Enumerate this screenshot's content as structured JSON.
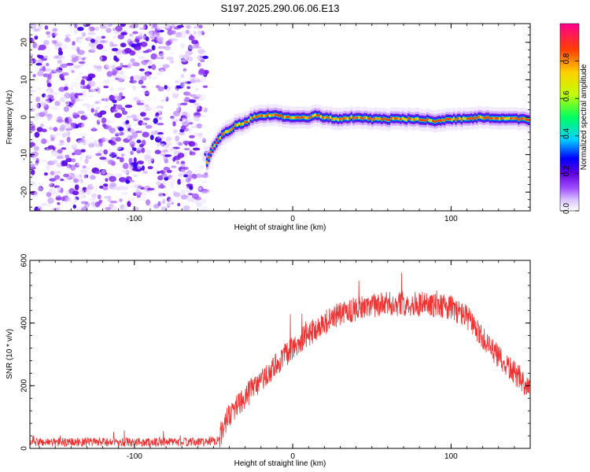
{
  "title": "S197.2025.290.06.06.E13",
  "chart_data": [
    {
      "type": "heatmap",
      "xlabel": "Height of straight line (km)",
      "ylabel": "Frequency (Hz)",
      "xlim": [
        -166,
        150
      ],
      "ylim": [
        -25,
        25
      ],
      "x_ticks": [
        -100,
        0,
        100
      ],
      "x_tick_labels": [
        "-100",
        "0",
        "100"
      ],
      "y_ticks": [
        -20,
        -10,
        0,
        10,
        20
      ],
      "y_tick_labels": [
        "-20",
        "-10",
        "0",
        "10",
        "20"
      ],
      "colorbar": {
        "label": "Normalized spectral amplitude",
        "range": [
          0,
          1
        ],
        "ticks": [
          0.0,
          0.2,
          0.4,
          0.6,
          0.8
        ],
        "tick_labels": [
          "0.0",
          "0.2",
          "0.4",
          "0.6",
          "0.8"
        ],
        "colors": [
          "#ffffff",
          "#d8c0ff",
          "#a050ff",
          "#6000e0",
          "#0000ff",
          "#00d0ff",
          "#00ff60",
          "#c0ff00",
          "#ffd000",
          "#ff4000",
          "#ff0090"
        ]
      },
      "noise_region_x": [
        -166,
        -54
      ],
      "noise_amplitude_range": [
        0.0,
        0.35
      ],
      "ridge": {
        "x": [
          -54,
          -50,
          -45,
          -40,
          -35,
          -30,
          -25,
          -20,
          -15,
          -10,
          -5,
          0,
          10,
          15,
          20,
          30,
          40,
          50,
          60,
          70,
          80,
          90,
          100,
          110,
          120,
          130,
          140,
          150
        ],
        "y": [
          -12,
          -8,
          -5,
          -3.5,
          -2,
          -1.5,
          0,
          0.5,
          0.5,
          0.5,
          0,
          0,
          0,
          0.5,
          0,
          -0.5,
          0,
          -0.5,
          -0.5,
          -0.5,
          -0.5,
          -1,
          -0.5,
          -0.5,
          0,
          -0.5,
          -0.5,
          -0.5
        ],
        "peak_amplitude": 0.9
      }
    },
    {
      "type": "line",
      "xlabel": "Height of straight line (km)",
      "ylabel": "SNR (10 * v/v)",
      "xlim": [
        -166,
        150
      ],
      "ylim": [
        0,
        600
      ],
      "x_ticks": [
        -100,
        0,
        100
      ],
      "x_tick_labels": [
        "-100",
        "0",
        "100"
      ],
      "y_ticks": [
        0,
        200,
        400,
        600
      ],
      "y_tick_labels": [
        "0",
        "200",
        "400",
        "600"
      ],
      "line_color": "#ee3333",
      "envelope": {
        "x": [
          -166,
          -60,
          -48,
          -45,
          -40,
          -30,
          -20,
          -10,
          0,
          10,
          20,
          30,
          40,
          50,
          60,
          70,
          80,
          90,
          100,
          110,
          120,
          130,
          140,
          150
        ],
        "y": [
          20,
          20,
          25,
          50,
          110,
          165,
          215,
          270,
          320,
          365,
          400,
          430,
          445,
          455,
          460,
          462,
          462,
          458,
          450,
          420,
          350,
          290,
          240,
          190
        ]
      },
      "noise_spread": 40
    }
  ]
}
